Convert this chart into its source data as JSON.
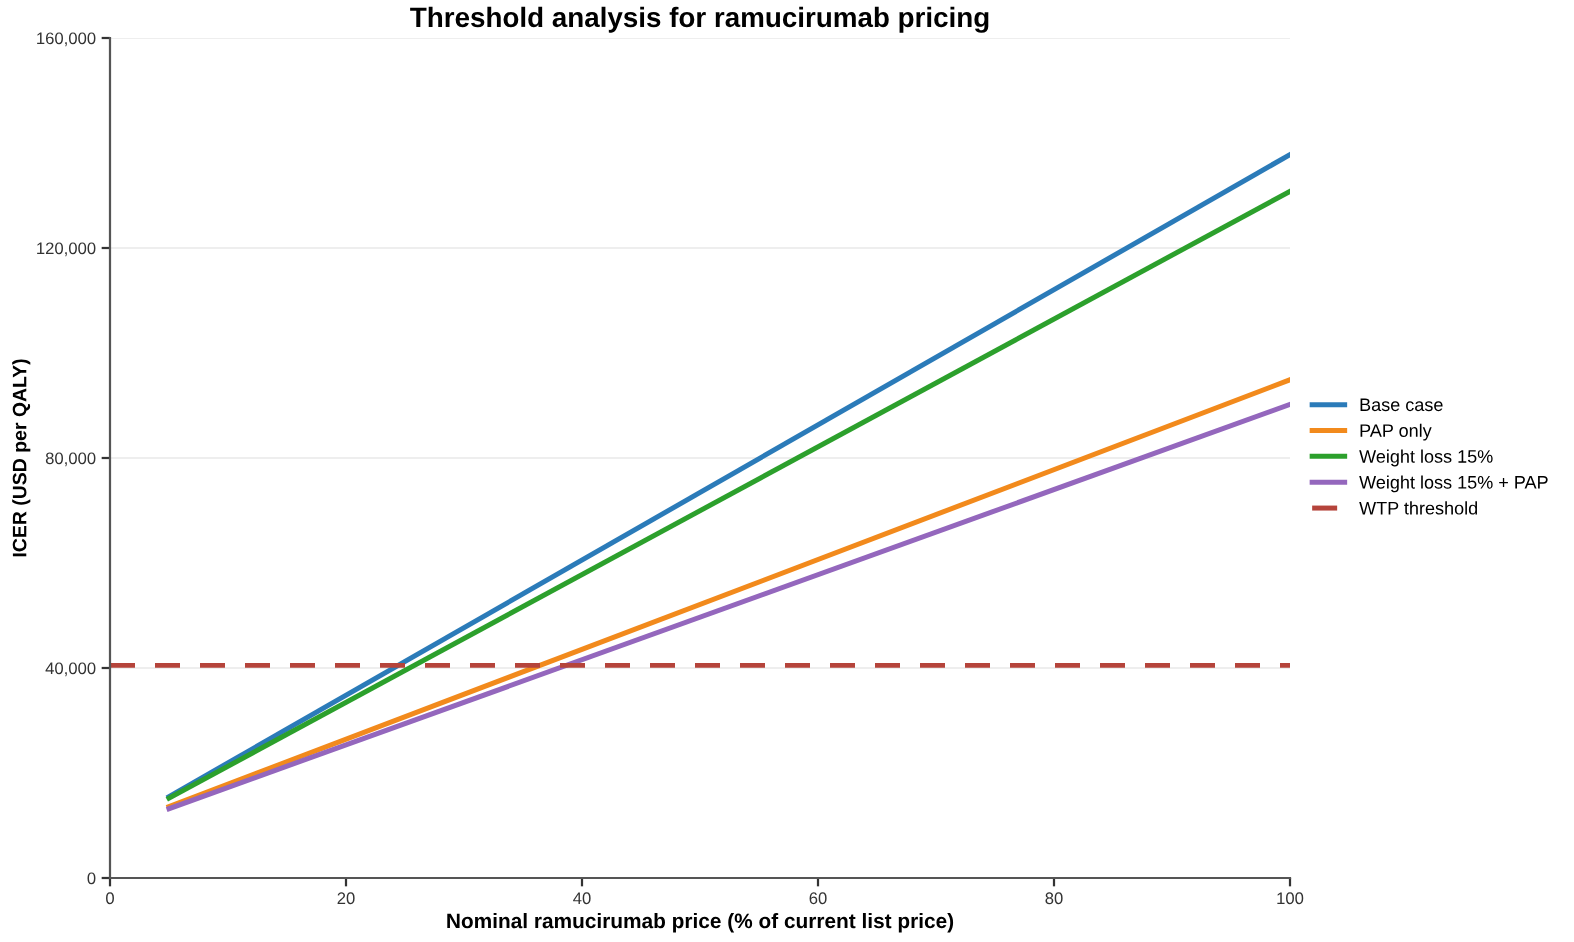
{
  "chart_data": {
    "type": "line",
    "title": "Threshold analysis for ramucirumab pricing",
    "xlabel": "Nominal ramucirumab price (% of current list price)",
    "ylabel": "ICER (USD per QALY)",
    "x": [
      5,
      100
    ],
    "xlim": [
      0,
      100
    ],
    "xticks": [
      0,
      20,
      40,
      60,
      80,
      100
    ],
    "ylim": [
      0,
      160000
    ],
    "yticks": [
      {
        "value": 0,
        "label": "0"
      },
      {
        "value": 40000,
        "label": "40,000"
      },
      {
        "value": 80000,
        "label": "80,000"
      },
      {
        "value": 120000,
        "label": "120,000"
      },
      {
        "value": 160000,
        "label": "160,000"
      }
    ],
    "grid": "y",
    "legend": "right",
    "line_style": "solid",
    "marker": "none",
    "series": [
      {
        "name": "Base case",
        "color": "#2b7bb9",
        "values": [
          15500,
          137800
        ]
      },
      {
        "name": "PAP only",
        "color": "#f28a1c",
        "values": [
          13600,
          94900
        ]
      },
      {
        "name": "Weight loss 15%",
        "color": "#2ca02c",
        "values": [
          15200,
          130800
        ]
      },
      {
        "name": "Weight loss 15% + PAP",
        "color": "#9467bd",
        "values": [
          13200,
          90200
        ]
      }
    ],
    "ref_lines": [
      {
        "axis": "y",
        "value": 40500,
        "label": "WTP threshold",
        "color": "#b5443b",
        "line_style": "dashed"
      }
    ]
  }
}
